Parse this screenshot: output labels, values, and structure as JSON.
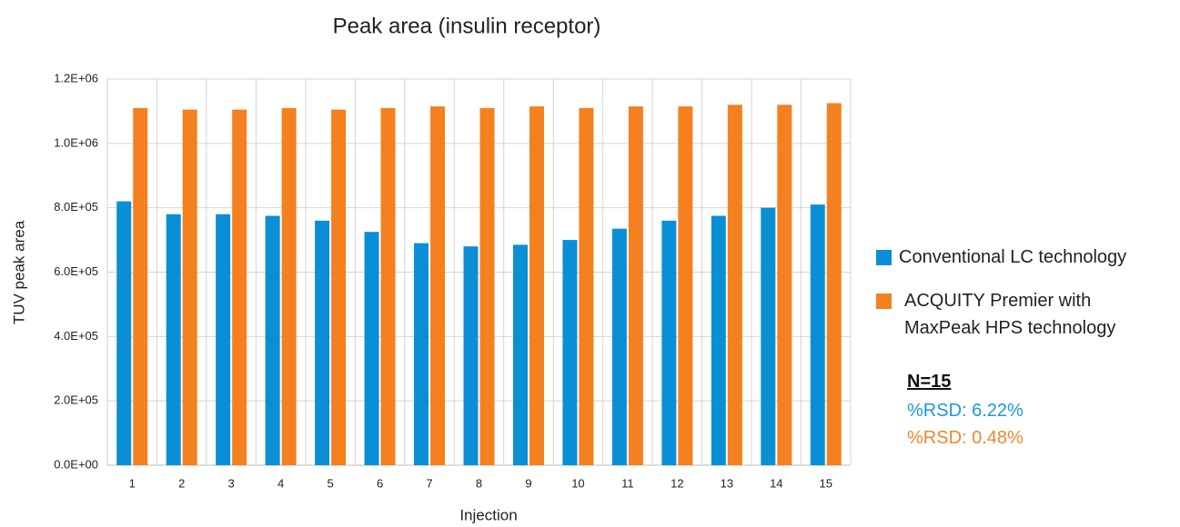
{
  "chart_data": {
    "type": "bar",
    "title": "Peak area (insulin receptor)",
    "x_label": "Injection",
    "y_label": "TUV peak area",
    "categories": [
      "1",
      "2",
      "3",
      "4",
      "5",
      "6",
      "7",
      "8",
      "9",
      "10",
      "11",
      "12",
      "13",
      "14",
      "15"
    ],
    "series": [
      {
        "name": "Conventional LC technology",
        "color": "#0a8fd6",
        "values": [
          820000,
          780000,
          780000,
          775000,
          760000,
          725000,
          690000,
          680000,
          685000,
          700000,
          735000,
          760000,
          775000,
          800000,
          810000
        ]
      },
      {
        "name": "ACQUITY Premier with MaxPeak HPS technology",
        "color": "#f5801f",
        "values": [
          1110000,
          1105000,
          1105000,
          1110000,
          1105000,
          1110000,
          1115000,
          1110000,
          1115000,
          1110000,
          1115000,
          1115000,
          1120000,
          1120000,
          1125000
        ]
      }
    ],
    "ylim": [
      0,
      1200000
    ],
    "yticks": [
      {
        "value": 0,
        "label": "0.0E+00"
      },
      {
        "value": 200000,
        "label": "2.0E+05"
      },
      {
        "value": 400000,
        "label": "4.0E+05"
      },
      {
        "value": 600000,
        "label": "6.0E+05"
      },
      {
        "value": 800000,
        "label": "8.0E+05"
      },
      {
        "value": 1000000,
        "label": "1.0E+06"
      },
      {
        "value": 1200000,
        "label": "1.2E+06"
      }
    ],
    "grid": true,
    "legend": "right",
    "annotations": [
      {
        "text": "N=15",
        "color": "#111111"
      },
      {
        "text": "%RSD: 6.22%",
        "color": "#1a9ad6"
      },
      {
        "text": "%RSD: 0.48%",
        "color": "#f0862a"
      }
    ]
  }
}
